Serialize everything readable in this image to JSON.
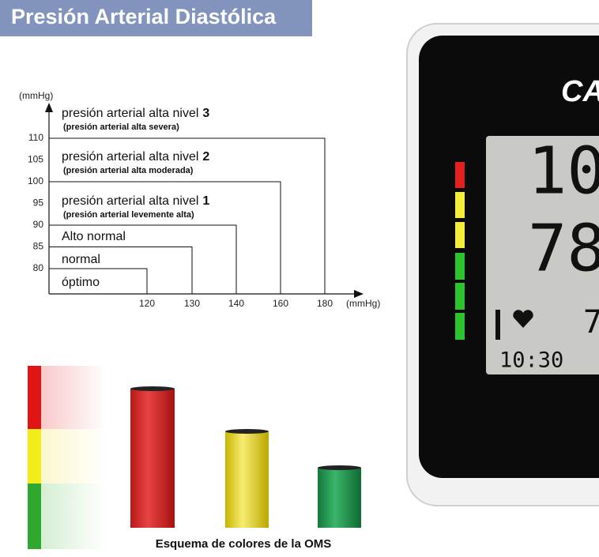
{
  "title": "Presión Arterial Diastólica",
  "y_axis_unit": "(mmHg)",
  "x_axis_unit": "(mmHg)",
  "yticks": [
    80,
    85,
    90,
    95,
    100,
    105,
    110
  ],
  "xticks": [
    120,
    130,
    140,
    160,
    180
  ],
  "zones": [
    {
      "label": "óptimo"
    },
    {
      "label": "normal"
    },
    {
      "label": "Alto normal"
    },
    {
      "label": "presión arterial alta nivel",
      "level": "1",
      "sublabel": "(presión arterial levemente alta)"
    },
    {
      "label": "presión arterial alta nivel",
      "level": "2",
      "sublabel": "(presión arterial alta moderada)"
    },
    {
      "label": "presión arterial alta nivel",
      "level": "3",
      "sublabel": "(presión arterial alta severa)"
    }
  ],
  "caption": "Esquema de colores de la OMS",
  "device": {
    "brand": "CA",
    "systolic": "10",
    "diastolic": "78",
    "pulse": "7",
    "time": "10:30"
  }
}
